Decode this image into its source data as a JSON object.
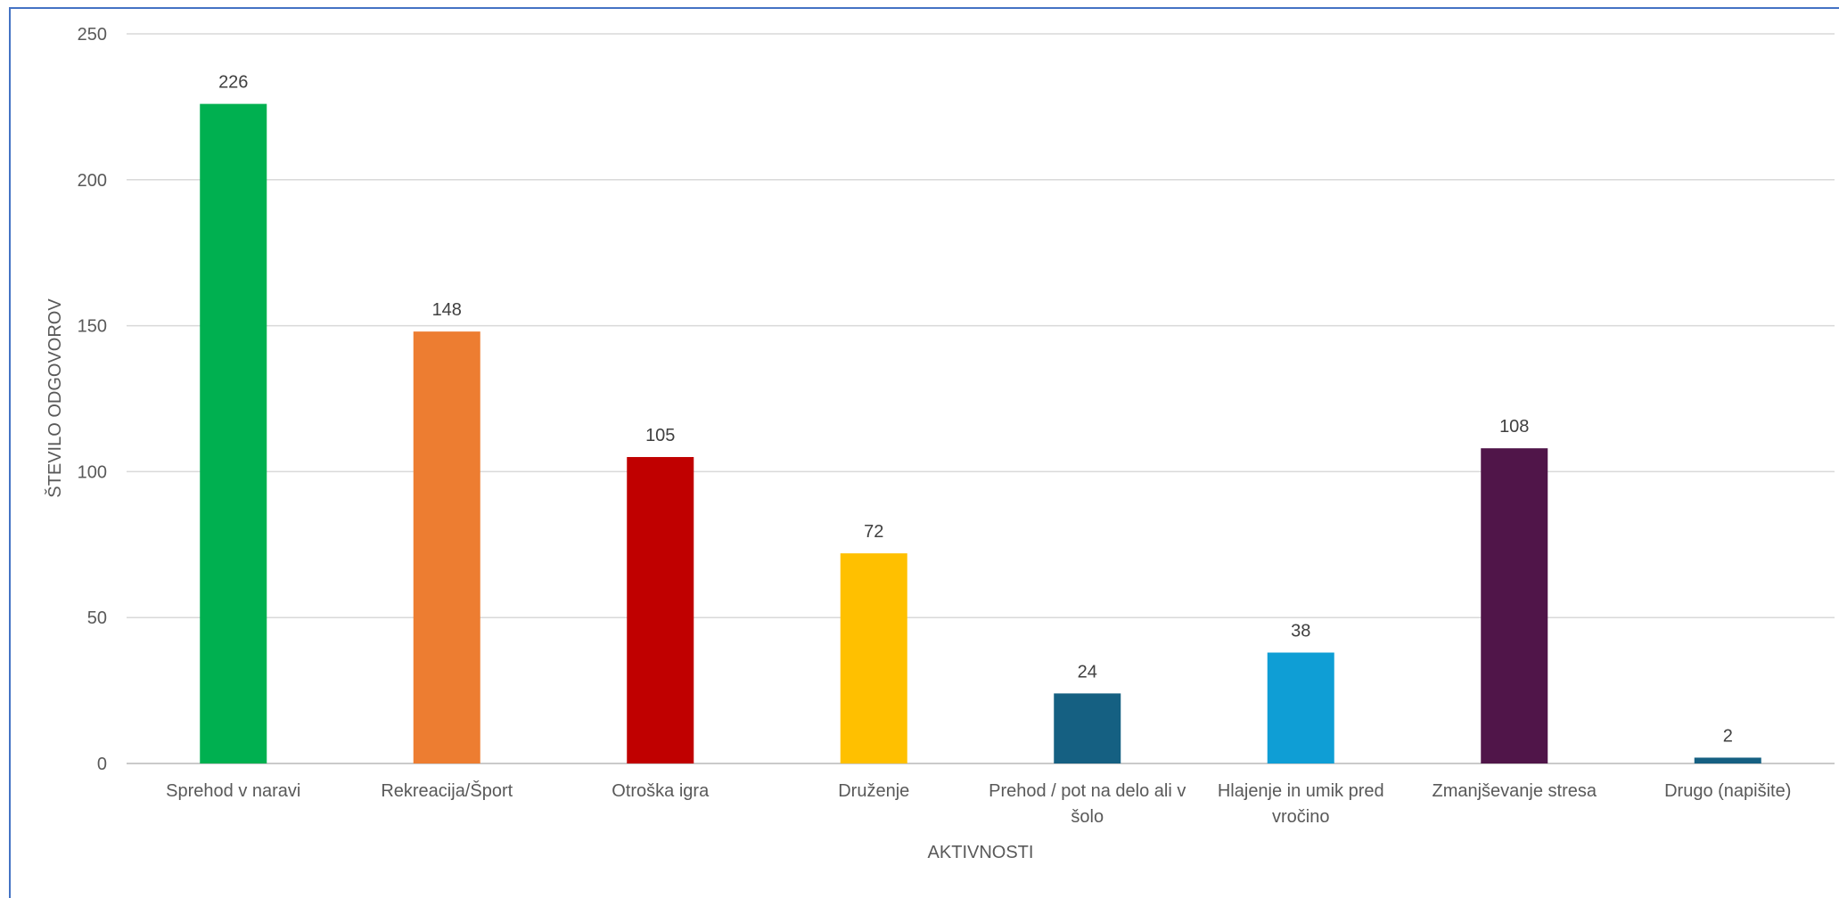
{
  "chart_data": {
    "type": "bar",
    "xlabel": "AKTIVNOSTI",
    "ylabel": "ŠTEVILO ODGOVOROV",
    "ylim": [
      0,
      250
    ],
    "yticks": [
      "0",
      "50",
      "100",
      "150",
      "200",
      "250"
    ],
    "grid": true,
    "categories": [
      [
        "Sprehod v naravi"
      ],
      [
        "Rekreacija/Šport"
      ],
      [
        "Otroška igra"
      ],
      [
        "Druženje"
      ],
      [
        "Prehod / pot na delo ali v",
        "šolo"
      ],
      [
        "Hlajenje in umik pred",
        "vročino"
      ],
      [
        "Zmanjševanje stresa"
      ],
      [
        "Drugo (napišite)"
      ]
    ],
    "values": [
      226,
      148,
      105,
      72,
      24,
      38,
      108,
      2
    ],
    "colors": [
      "#00b050",
      "#ed7d31",
      "#c00000",
      "#ffc000",
      "#156082",
      "#0f9ed5",
      "#501549",
      "#156082"
    ]
  }
}
